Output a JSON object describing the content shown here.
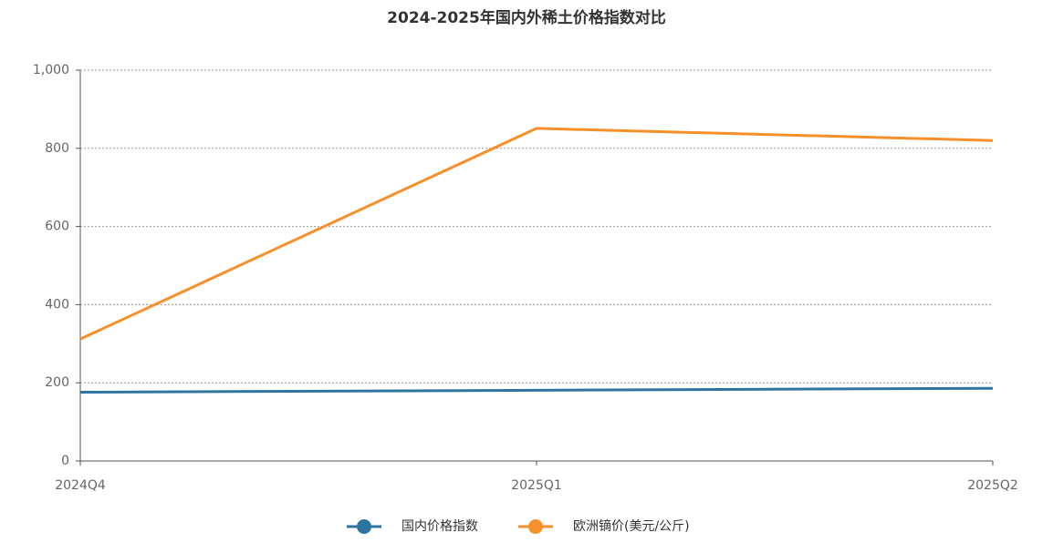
{
  "chart_data": {
    "type": "line",
    "title": "2024-2025年国内外稀土价格指数对比",
    "categories": [
      "2024Q4",
      "2025Q1",
      "2025Q2"
    ],
    "series": [
      {
        "name": "国内价格指数",
        "color": "#2e74a0",
        "values": [
          176,
          181,
          186
        ]
      },
      {
        "name": "欧洲镝价(美元/公斤)",
        "color": "#f7902a",
        "values": [
          312,
          851,
          820
        ]
      }
    ],
    "ylim": [
      0,
      1000
    ],
    "yticks": [
      0,
      200,
      400,
      600,
      800,
      {
        "value": 1000,
        "label": "1,000"
      }
    ],
    "grid": true
  }
}
